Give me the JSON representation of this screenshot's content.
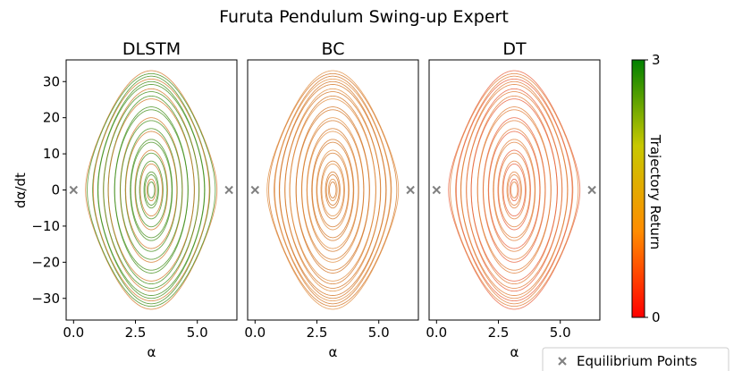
{
  "chart_data": {
    "type": "scatter",
    "title": "Furuta Pendulum Swing-up Expert",
    "ylabel": "dα/dt",
    "xlabel": "α",
    "xlim": [
      -0.3,
      6.6
    ],
    "ylim": [
      -36,
      36
    ],
    "xticks": [
      0.0,
      2.5,
      5.0
    ],
    "xtick_labels": [
      "0.0",
      "2.5",
      "5.0"
    ],
    "yticks": [
      30,
      20,
      10,
      0,
      -10,
      -20,
      -30
    ],
    "ytick_labels": [
      "30",
      "20",
      "10",
      "0",
      "−10",
      "−20",
      "−30"
    ],
    "panels": [
      {
        "title": "DLSTM",
        "dominant_color": "#3a8a10",
        "secondary_color": "#d2701e"
      },
      {
        "title": "BC",
        "dominant_color": "#d2701e",
        "secondary_color": "#e08a3a"
      },
      {
        "title": "DT",
        "dominant_color": "#e07830",
        "secondary_color": "#e85a35"
      }
    ],
    "equilibrium_points": [
      {
        "x": 0.0,
        "y": 0
      },
      {
        "x": 6.28,
        "y": 0
      }
    ],
    "legend": {
      "label": "Equilibrium Points",
      "marker": "x",
      "color": "#808080",
      "placement": "bottom-right"
    },
    "colorbar": {
      "label": "Trajectory Return",
      "min": 0,
      "max": 3,
      "min_label": "0",
      "max_label": "3",
      "colors": [
        "#ff0000",
        "#ff8c00",
        "#c8c800",
        "#008000"
      ]
    },
    "trajectory_family": {
      "center": [
        3.14,
        0
      ],
      "orbit_amplitudes": [
        3,
        5,
        8,
        11,
        14,
        17,
        20,
        23,
        26,
        28,
        30,
        31.5,
        33
      ],
      "separatrix_peak": 33
    },
    "grid": false
  }
}
